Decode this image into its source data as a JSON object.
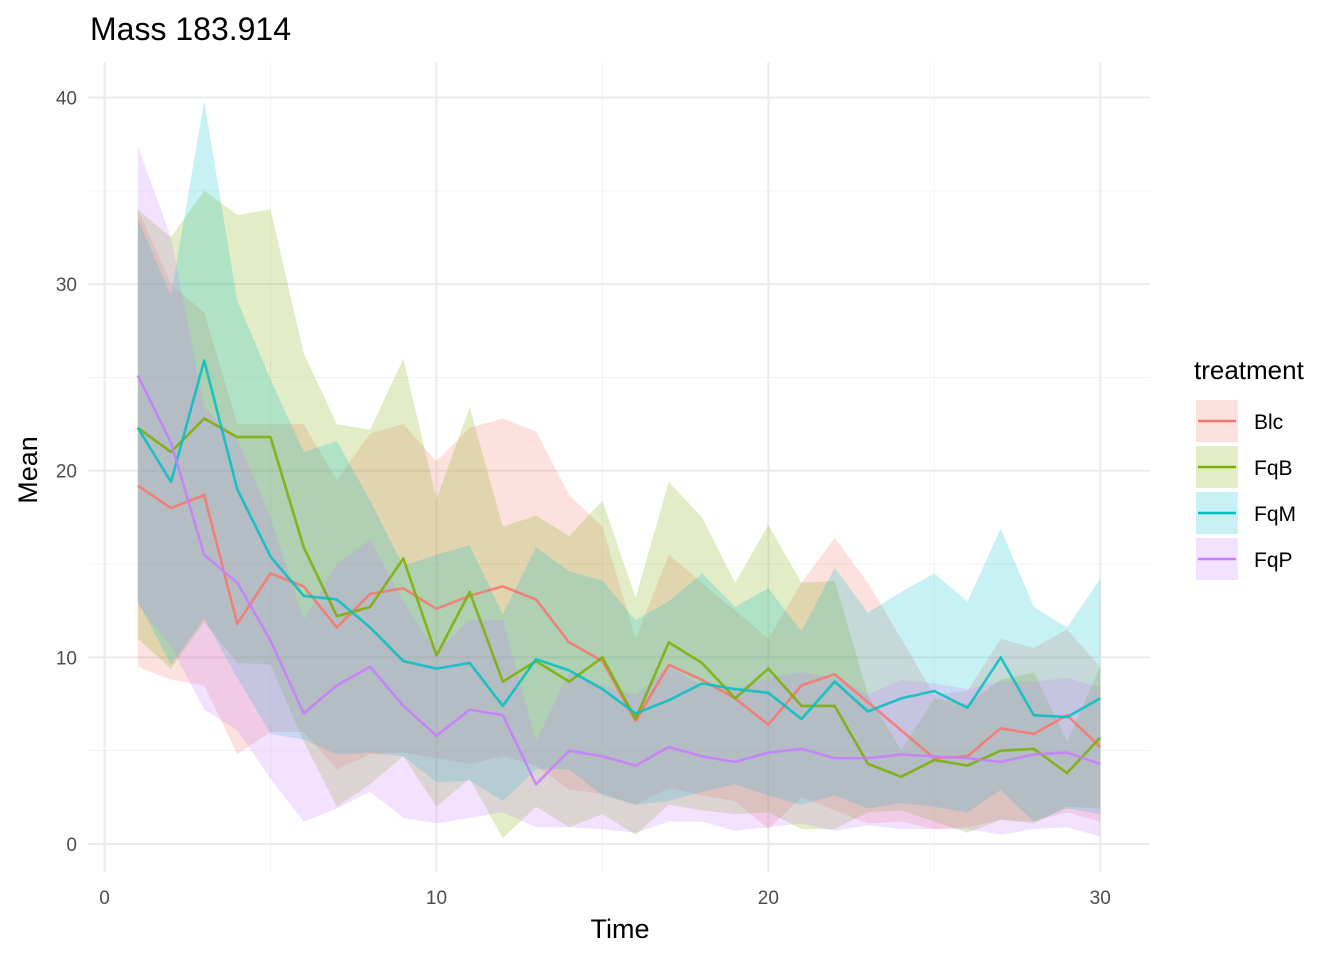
{
  "chart_data": {
    "type": "line",
    "title": "Mass 183.914",
    "xlabel": "Time",
    "ylabel": "Mean",
    "xlim": [
      -0.5,
      31.5
    ],
    "ylim": [
      -1.5,
      41.9
    ],
    "x_ticks": [
      0,
      10,
      20,
      30
    ],
    "y_ticks": [
      0,
      10,
      20,
      30,
      40
    ],
    "grid": true,
    "legend": {
      "title": "treatment",
      "position": "right"
    },
    "x": [
      1,
      2,
      3,
      4,
      5,
      6,
      7,
      8,
      9,
      10,
      11,
      12,
      13,
      14,
      15,
      16,
      17,
      18,
      19,
      20,
      21,
      22,
      23,
      24,
      25,
      26,
      27,
      28,
      29,
      30
    ],
    "series": [
      {
        "name": "Blc",
        "color": "#F8766D",
        "mean": [
          19.2,
          18.0,
          18.7,
          11.8,
          14.5,
          13.8,
          11.6,
          13.4,
          13.7,
          12.6,
          13.3,
          13.8,
          13.1,
          10.8,
          9.8,
          6.6,
          9.6,
          8.8,
          7.8,
          6.4,
          8.5,
          9.1,
          7.6,
          6.1,
          4.6,
          4.7,
          6.2,
          5.9,
          6.9,
          5.2
        ],
        "upper": [
          34.0,
          30.0,
          28.5,
          22.5,
          22.5,
          22.5,
          19.5,
          22.0,
          22.5,
          20.5,
          22.3,
          22.8,
          22.1,
          18.7,
          17.0,
          11.0,
          15.5,
          14.0,
          12.5,
          11.0,
          14.0,
          16.4,
          14.0,
          11.0,
          8.0,
          8.2,
          11.0,
          10.5,
          11.5,
          9.5
        ],
        "lower": [
          9.5,
          8.8,
          8.5,
          4.8,
          6.0,
          6.0,
          4.0,
          4.8,
          4.9,
          4.6,
          4.3,
          4.7,
          4.2,
          2.9,
          2.7,
          2.1,
          3.0,
          2.6,
          2.3,
          0.8,
          2.5,
          1.8,
          1.1,
          1.2,
          0.8,
          0.9,
          1.3,
          1.2,
          1.7,
          1.2
        ]
      },
      {
        "name": "FqB",
        "color": "#7CAE00",
        "mean": [
          22.3,
          21.0,
          22.8,
          21.8,
          21.8,
          15.9,
          12.2,
          12.7,
          15.3,
          10.1,
          13.5,
          8.7,
          9.8,
          8.7,
          10.0,
          6.7,
          10.8,
          9.7,
          7.8,
          9.4,
          7.4,
          7.4,
          4.3,
          3.6,
          4.5,
          4.2,
          5.0,
          5.1,
          3.8,
          5.7
        ],
        "upper": [
          34.0,
          32.5,
          35.0,
          33.7,
          34.0,
          26.3,
          22.5,
          22.2,
          26.0,
          18.5,
          23.4,
          17.0,
          17.6,
          16.5,
          18.4,
          13.2,
          19.4,
          17.5,
          14.0,
          17.1,
          14.0,
          14.1,
          8.0,
          5.0,
          7.8,
          7.5,
          8.8,
          9.2,
          5.5,
          9.5
        ],
        "lower": [
          11.0,
          9.4,
          11.9,
          9.7,
          9.6,
          5.5,
          2.0,
          3.2,
          4.7,
          2.0,
          3.5,
          0.3,
          2.0,
          0.9,
          1.6,
          0.5,
          2.1,
          1.8,
          1.6,
          1.7,
          0.8,
          0.8,
          1.7,
          1.8,
          1.2,
          0.6,
          1.3,
          1.1,
          2.0,
          1.9
        ]
      },
      {
        "name": "FqM",
        "color": "#00BFC4",
        "mean": [
          22.3,
          19.4,
          25.9,
          19.0,
          15.4,
          13.3,
          13.1,
          11.6,
          9.8,
          9.4,
          9.7,
          7.4,
          9.9,
          9.3,
          8.3,
          7.0,
          7.7,
          8.6,
          8.3,
          8.1,
          6.7,
          8.7,
          7.1,
          7.8,
          8.2,
          7.3,
          10.0,
          6.9,
          6.8,
          7.8
        ],
        "upper": [
          33.5,
          29.4,
          39.8,
          29.1,
          24.9,
          21.0,
          21.6,
          18.4,
          14.9,
          15.5,
          16.0,
          12.3,
          15.9,
          14.6,
          14.1,
          12.0,
          13.0,
          14.5,
          12.7,
          13.7,
          11.4,
          14.8,
          12.4,
          13.5,
          14.5,
          13.0,
          16.9,
          12.7,
          11.6,
          14.2
        ],
        "lower": [
          13.0,
          9.6,
          12.1,
          8.9,
          5.9,
          5.6,
          4.8,
          4.9,
          4.7,
          3.3,
          3.4,
          2.3,
          4.0,
          4.0,
          2.6,
          2.1,
          2.3,
          2.8,
          3.2,
          2.6,
          2.1,
          2.6,
          1.9,
          2.2,
          2.0,
          1.7,
          2.9,
          1.2,
          1.9,
          1.6
        ]
      },
      {
        "name": "FqP",
        "color": "#C77CFF",
        "mean": [
          25.1,
          21.5,
          15.5,
          14.0,
          10.9,
          7.0,
          8.5,
          9.5,
          7.4,
          5.8,
          7.2,
          6.9,
          3.2,
          5.0,
          4.7,
          4.2,
          5.2,
          4.7,
          4.4,
          4.9,
          5.1,
          4.6,
          4.6,
          4.8,
          4.7,
          4.6,
          4.4,
          4.8,
          4.9,
          4.3
        ],
        "upper": [
          37.4,
          32.5,
          23.4,
          21.7,
          17.5,
          12.0,
          15.0,
          16.3,
          13.0,
          10.3,
          12.0,
          12.0,
          5.5,
          9.2,
          8.5,
          8.0,
          9.5,
          8.5,
          8.3,
          8.9,
          9.2,
          8.9,
          8.0,
          8.8,
          8.6,
          8.3,
          8.7,
          8.7,
          8.9,
          8.4
        ],
        "lower": [
          12.8,
          10.6,
          7.2,
          6.1,
          3.5,
          1.2,
          1.9,
          2.8,
          1.4,
          1.1,
          1.4,
          1.7,
          0.9,
          0.9,
          0.8,
          0.6,
          1.2,
          1.2,
          0.7,
          0.9,
          1.1,
          0.7,
          1.0,
          0.8,
          0.8,
          0.8,
          0.5,
          0.8,
          0.9,
          0.4
        ]
      }
    ]
  }
}
